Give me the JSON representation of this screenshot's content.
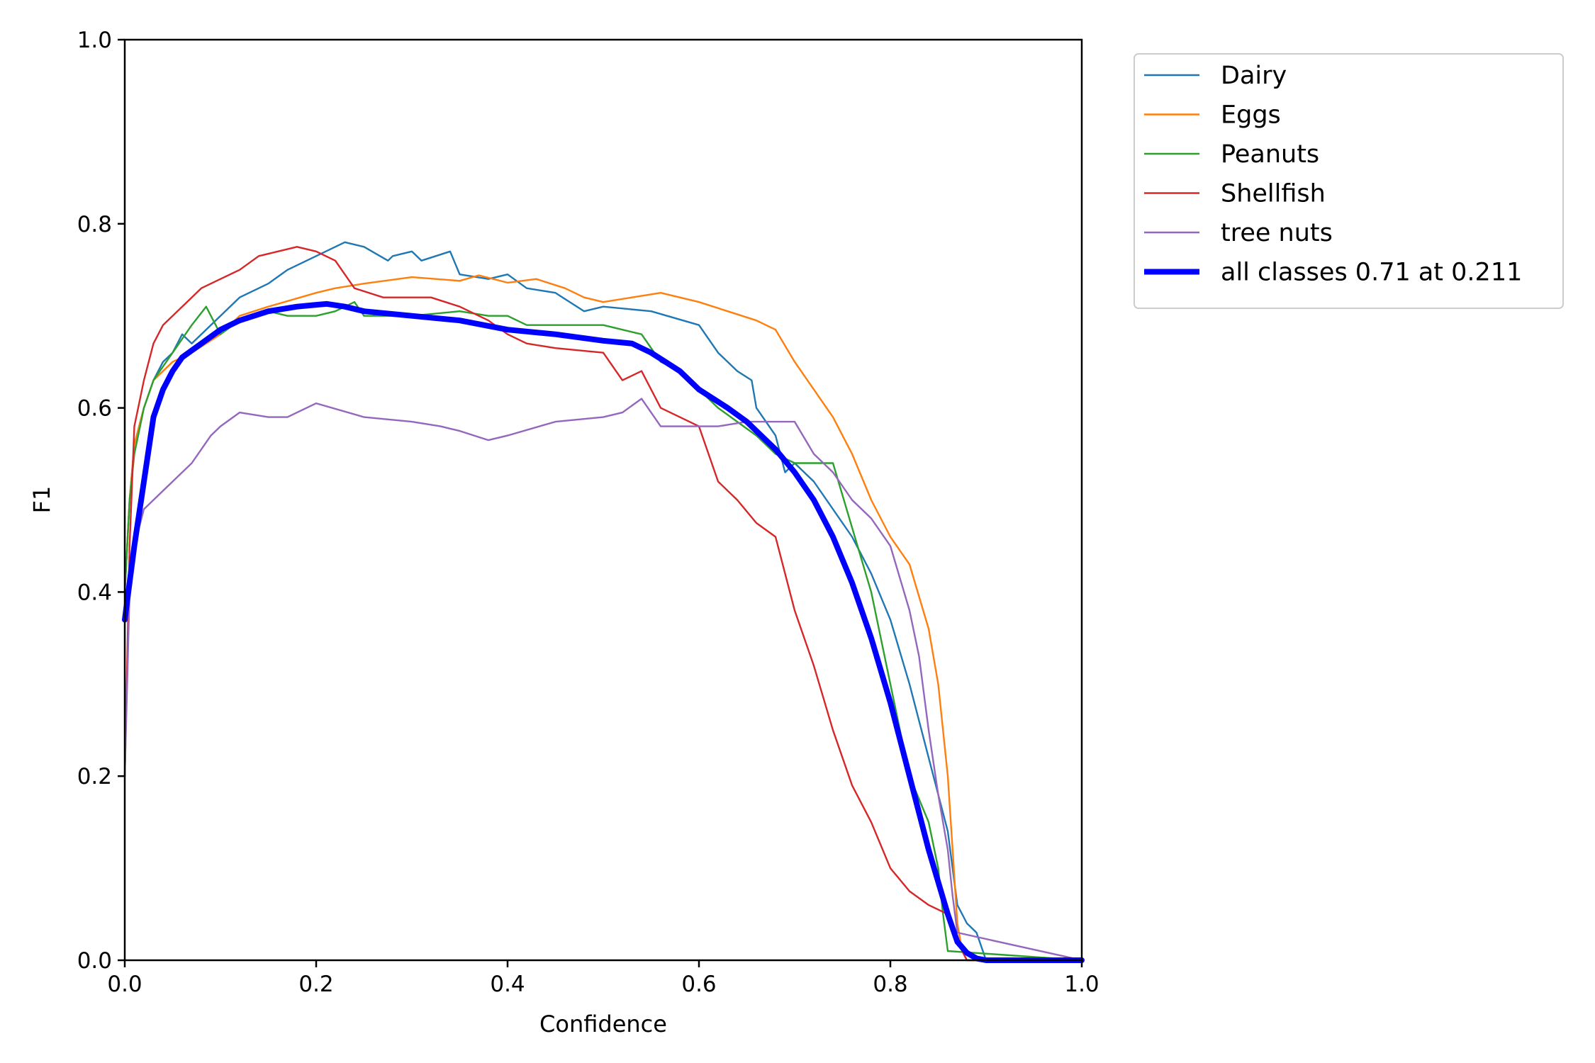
{
  "chart_data": {
    "type": "line",
    "title": "",
    "xlabel": "Confidence",
    "ylabel": "F1",
    "xlim": [
      0,
      1
    ],
    "ylim": [
      0,
      1
    ],
    "xticks": [
      "0.0",
      "0.2",
      "0.4",
      "0.6",
      "0.8",
      "1.0"
    ],
    "yticks": [
      "0.0",
      "0.2",
      "0.4",
      "0.6",
      "0.8",
      "1.0"
    ],
    "grid": false,
    "legend_position": "outside-top-right",
    "series": [
      {
        "name": "Dairy",
        "color": "#1f77b4",
        "width": "thin",
        "x": [
          0,
          0.005,
          0.01,
          0.02,
          0.03,
          0.04,
          0.05,
          0.06,
          0.07,
          0.08,
          0.1,
          0.12,
          0.15,
          0.17,
          0.2,
          0.23,
          0.25,
          0.275,
          0.28,
          0.3,
          0.31,
          0.34,
          0.35,
          0.38,
          0.4,
          0.42,
          0.45,
          0.48,
          0.5,
          0.55,
          0.6,
          0.62,
          0.64,
          0.655,
          0.66,
          0.68,
          0.69,
          0.7,
          0.72,
          0.74,
          0.76,
          0.78,
          0.8,
          0.82,
          0.84,
          0.86,
          0.87,
          0.875,
          0.88,
          0.885,
          0.89,
          0.9,
          1.0
        ],
        "y": [
          0.4,
          0.5,
          0.56,
          0.6,
          0.63,
          0.65,
          0.66,
          0.68,
          0.67,
          0.68,
          0.7,
          0.72,
          0.735,
          0.75,
          0.765,
          0.78,
          0.775,
          0.76,
          0.765,
          0.77,
          0.76,
          0.77,
          0.745,
          0.74,
          0.745,
          0.73,
          0.725,
          0.705,
          0.71,
          0.705,
          0.69,
          0.66,
          0.64,
          0.63,
          0.6,
          0.57,
          0.53,
          0.54,
          0.52,
          0.49,
          0.46,
          0.42,
          0.37,
          0.3,
          0.22,
          0.14,
          0.06,
          0.05,
          0.04,
          0.035,
          0.03,
          0,
          0
        ]
      },
      {
        "name": "Eggs",
        "color": "#ff7f0e",
        "width": "thin",
        "x": [
          0,
          0.005,
          0.01,
          0.02,
          0.03,
          0.04,
          0.05,
          0.07,
          0.1,
          0.12,
          0.15,
          0.2,
          0.22,
          0.25,
          0.3,
          0.35,
          0.37,
          0.4,
          0.43,
          0.46,
          0.48,
          0.5,
          0.53,
          0.56,
          0.58,
          0.6,
          0.63,
          0.66,
          0.68,
          0.7,
          0.72,
          0.74,
          0.76,
          0.78,
          0.8,
          0.82,
          0.84,
          0.85,
          0.86,
          0.865,
          0.87,
          0.875,
          0.88,
          1.0
        ],
        "y": [
          0.4,
          0.5,
          0.56,
          0.6,
          0.63,
          0.64,
          0.65,
          0.66,
          0.68,
          0.7,
          0.71,
          0.725,
          0.73,
          0.735,
          0.742,
          0.738,
          0.744,
          0.736,
          0.74,
          0.73,
          0.72,
          0.715,
          0.72,
          0.725,
          0.72,
          0.715,
          0.705,
          0.695,
          0.685,
          0.65,
          0.62,
          0.59,
          0.55,
          0.5,
          0.46,
          0.43,
          0.36,
          0.3,
          0.2,
          0.12,
          0.04,
          0.01,
          0,
          0
        ]
      },
      {
        "name": "Peanuts",
        "color": "#2ca02c",
        "width": "thin",
        "x": [
          0,
          0.005,
          0.01,
          0.02,
          0.03,
          0.05,
          0.07,
          0.085,
          0.1,
          0.12,
          0.15,
          0.17,
          0.2,
          0.22,
          0.24,
          0.25,
          0.3,
          0.35,
          0.38,
          0.4,
          0.42,
          0.46,
          0.5,
          0.54,
          0.56,
          0.58,
          0.6,
          0.62,
          0.64,
          0.66,
          0.68,
          0.7,
          0.72,
          0.74,
          0.76,
          0.78,
          0.8,
          0.82,
          0.84,
          0.85,
          0.855,
          0.86,
          1.0
        ],
        "y": [
          0.4,
          0.5,
          0.55,
          0.6,
          0.63,
          0.66,
          0.69,
          0.71,
          0.68,
          0.695,
          0.705,
          0.7,
          0.7,
          0.705,
          0.715,
          0.7,
          0.7,
          0.705,
          0.7,
          0.7,
          0.69,
          0.69,
          0.69,
          0.68,
          0.65,
          0.64,
          0.62,
          0.6,
          0.585,
          0.57,
          0.55,
          0.54,
          0.54,
          0.54,
          0.47,
          0.4,
          0.3,
          0.2,
          0.15,
          0.1,
          0.05,
          0.01,
          0
        ]
      },
      {
        "name": "Shellfish",
        "color": "#d62728",
        "width": "thin",
        "x": [
          0,
          0.005,
          0.01,
          0.02,
          0.03,
          0.04,
          0.05,
          0.06,
          0.07,
          0.08,
          0.1,
          0.12,
          0.14,
          0.16,
          0.18,
          0.2,
          0.22,
          0.24,
          0.27,
          0.3,
          0.32,
          0.35,
          0.38,
          0.4,
          0.42,
          0.45,
          0.5,
          0.52,
          0.54,
          0.56,
          0.58,
          0.6,
          0.62,
          0.64,
          0.66,
          0.68,
          0.7,
          0.72,
          0.74,
          0.76,
          0.78,
          0.8,
          0.82,
          0.84,
          0.86,
          0.865,
          0.87,
          0.875,
          0.88,
          1.0
        ],
        "y": [
          0.2,
          0.45,
          0.58,
          0.63,
          0.67,
          0.69,
          0.7,
          0.71,
          0.72,
          0.73,
          0.74,
          0.75,
          0.765,
          0.77,
          0.775,
          0.77,
          0.76,
          0.73,
          0.72,
          0.72,
          0.72,
          0.71,
          0.695,
          0.68,
          0.67,
          0.665,
          0.66,
          0.63,
          0.64,
          0.6,
          0.59,
          0.58,
          0.52,
          0.5,
          0.475,
          0.46,
          0.38,
          0.32,
          0.25,
          0.19,
          0.15,
          0.1,
          0.075,
          0.06,
          0.05,
          0.04,
          0.02,
          0.01,
          0,
          0
        ]
      },
      {
        "name": "tree nuts",
        "color": "#9467bd",
        "width": "thin",
        "x": [
          0,
          0.005,
          0.01,
          0.02,
          0.03,
          0.05,
          0.07,
          0.09,
          0.1,
          0.12,
          0.15,
          0.17,
          0.2,
          0.25,
          0.3,
          0.33,
          0.35,
          0.38,
          0.4,
          0.45,
          0.5,
          0.52,
          0.54,
          0.56,
          0.58,
          0.6,
          0.62,
          0.65,
          0.68,
          0.7,
          0.72,
          0.74,
          0.76,
          0.78,
          0.8,
          0.82,
          0.83,
          0.84,
          0.85,
          0.86,
          0.865,
          0.87,
          1.0
        ],
        "y": [
          0.2,
          0.4,
          0.45,
          0.49,
          0.5,
          0.52,
          0.54,
          0.57,
          0.58,
          0.595,
          0.59,
          0.59,
          0.605,
          0.59,
          0.585,
          0.58,
          0.575,
          0.565,
          0.57,
          0.585,
          0.59,
          0.595,
          0.61,
          0.58,
          0.58,
          0.58,
          0.58,
          0.585,
          0.585,
          0.585,
          0.55,
          0.53,
          0.5,
          0.48,
          0.45,
          0.38,
          0.33,
          0.25,
          0.18,
          0.12,
          0.07,
          0.03,
          0
        ]
      },
      {
        "name": "all classes 0.71 at 0.211",
        "color": "#0000ff",
        "width": "thick",
        "x": [
          0,
          0.01,
          0.02,
          0.03,
          0.04,
          0.05,
          0.06,
          0.08,
          0.1,
          0.12,
          0.15,
          0.18,
          0.2,
          0.211,
          0.23,
          0.25,
          0.3,
          0.35,
          0.4,
          0.45,
          0.5,
          0.53,
          0.55,
          0.58,
          0.6,
          0.63,
          0.65,
          0.68,
          0.7,
          0.72,
          0.74,
          0.76,
          0.78,
          0.8,
          0.82,
          0.84,
          0.86,
          0.87,
          0.88,
          0.89,
          0.9,
          0.92,
          1.0
        ],
        "y": [
          0.37,
          0.45,
          0.52,
          0.59,
          0.62,
          0.64,
          0.655,
          0.67,
          0.685,
          0.695,
          0.705,
          0.71,
          0.712,
          0.713,
          0.71,
          0.705,
          0.7,
          0.695,
          0.685,
          0.68,
          0.673,
          0.67,
          0.66,
          0.64,
          0.62,
          0.6,
          0.585,
          0.555,
          0.53,
          0.5,
          0.46,
          0.41,
          0.35,
          0.28,
          0.2,
          0.12,
          0.05,
          0.02,
          0.008,
          0.002,
          0,
          0,
          0
        ]
      }
    ]
  }
}
